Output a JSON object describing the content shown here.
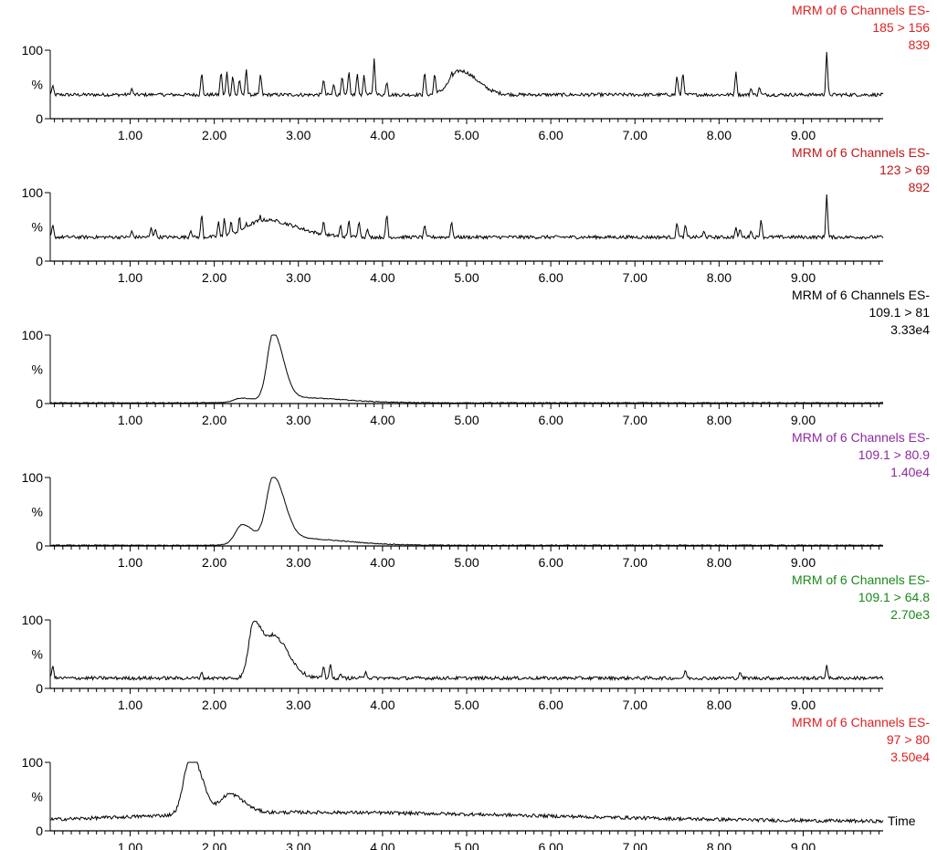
{
  "x_axis_title": "Time",
  "chart_data": [
    {
      "type": "line",
      "header": [
        "MRM of 6 Channels ES-",
        "185 > 156",
        "839"
      ],
      "header_color": "#e02020",
      "xlim": [
        0.05,
        9.95
      ],
      "ylim": [
        0,
        100
      ],
      "y_ticks": [
        "0",
        "%",
        "100"
      ],
      "x_ticks": [
        "1.00",
        "2.00",
        "3.00",
        "4.00",
        "5.00",
        "6.00",
        "7.00",
        "8.00",
        "9.00"
      ],
      "baseline": 35,
      "peaks": [
        [
          0.08,
          50
        ],
        [
          1.02,
          45
        ],
        [
          1.3,
          35
        ],
        [
          1.85,
          70
        ],
        [
          2.08,
          72
        ],
        [
          2.15,
          70
        ],
        [
          2.22,
          65
        ],
        [
          2.3,
          60
        ],
        [
          2.38,
          75
        ],
        [
          2.55,
          68
        ],
        [
          3.3,
          60
        ],
        [
          3.42,
          52
        ],
        [
          3.52,
          65
        ],
        [
          3.6,
          72
        ],
        [
          3.7,
          68
        ],
        [
          3.78,
          65
        ],
        [
          3.9,
          88
        ],
        [
          4.05,
          55
        ],
        [
          4.5,
          72
        ],
        [
          4.62,
          70
        ],
        [
          4.82,
          75
        ],
        [
          4.95,
          72
        ],
        [
          5.02,
          60
        ],
        [
          7.5,
          65
        ],
        [
          7.57,
          70
        ],
        [
          8.2,
          70
        ],
        [
          8.38,
          45
        ],
        [
          8.48,
          47
        ],
        [
          9.28,
          100
        ]
      ],
      "humps": [
        [
          4.92,
          0.12,
          35
        ]
      ]
    },
    {
      "type": "line",
      "header": [
        "MRM of 6 Channels ES-",
        "123 > 69",
        "892"
      ],
      "header_color": "#c01818",
      "xlim": [
        0.05,
        9.95
      ],
      "ylim": [
        0,
        100
      ],
      "y_ticks": [
        "0",
        "%",
        "100"
      ],
      "x_ticks": [
        "1.00",
        "2.00",
        "3.00",
        "4.00",
        "5.00",
        "6.00",
        "7.00",
        "8.00",
        "9.00"
      ],
      "baseline": 35,
      "peaks": [
        [
          0.08,
          55
        ],
        [
          1.02,
          45
        ],
        [
          1.25,
          50
        ],
        [
          1.3,
          48
        ],
        [
          1.72,
          45
        ],
        [
          1.85,
          72
        ],
        [
          2.05,
          60
        ],
        [
          2.12,
          65
        ],
        [
          2.2,
          62
        ],
        [
          2.3,
          70
        ],
        [
          2.38,
          58
        ],
        [
          2.55,
          72
        ],
        [
          2.7,
          60
        ],
        [
          3.0,
          45
        ],
        [
          3.3,
          62
        ],
        [
          3.5,
          55
        ],
        [
          3.6,
          62
        ],
        [
          3.72,
          60
        ],
        [
          3.82,
          48
        ],
        [
          4.05,
          72
        ],
        [
          4.5,
          55
        ],
        [
          4.82,
          60
        ],
        [
          7.5,
          58
        ],
        [
          7.6,
          55
        ],
        [
          7.82,
          45
        ],
        [
          8.2,
          50
        ],
        [
          8.25,
          48
        ],
        [
          8.38,
          45
        ],
        [
          8.5,
          62
        ],
        [
          9.28,
          100
        ]
      ],
      "humps": [
        [
          2.6,
          0.22,
          25
        ]
      ]
    },
    {
      "type": "line",
      "header": [
        "MRM of 6 Channels ES-",
        "109.1 > 81",
        "3.33e4"
      ],
      "header_color": "#000000",
      "xlim": [
        0.05,
        9.95
      ],
      "ylim": [
        0,
        100
      ],
      "y_ticks": [
        "0",
        "%",
        "100"
      ],
      "x_ticks": [
        "1.00",
        "2.00",
        "3.00",
        "4.00",
        "5.00",
        "6.00",
        "7.00",
        "8.00",
        "9.00"
      ],
      "baseline": 1,
      "peaks": [],
      "humps": [
        [
          2.7,
          0.07,
          95
        ],
        [
          2.9,
          0.35,
          8
        ],
        [
          2.3,
          0.07,
          5
        ]
      ]
    },
    {
      "type": "line",
      "header": [
        "MRM of 6 Channels ES-",
        "109.1 > 80.9",
        "1.40e4"
      ],
      "header_color": "#8e2aa0",
      "xlim": [
        0.05,
        9.95
      ],
      "ylim": [
        0,
        100
      ],
      "y_ticks": [
        "0",
        "%",
        "100"
      ],
      "x_ticks": [
        "1.00",
        "2.00",
        "3.00",
        "4.00",
        "5.00",
        "6.00",
        "7.00",
        "8.00",
        "9.00"
      ],
      "baseline": 1,
      "peaks": [],
      "humps": [
        [
          2.7,
          0.08,
          92
        ],
        [
          2.33,
          0.08,
          28
        ],
        [
          2.95,
          0.35,
          10
        ]
      ]
    },
    {
      "type": "line",
      "header": [
        "MRM of 6 Channels ES-",
        "109.1 > 64.8",
        "2.70e3"
      ],
      "header_color": "#1a8a1a",
      "xlim": [
        0.05,
        9.95
      ],
      "ylim": [
        0,
        100
      ],
      "y_ticks": [
        "0",
        "%",
        "100"
      ],
      "x_ticks": [
        "1.00",
        "2.00",
        "3.00",
        "4.00",
        "5.00",
        "6.00",
        "7.00",
        "8.00",
        "9.00"
      ],
      "baseline": 15,
      "peaks": [
        [
          0.08,
          35
        ],
        [
          1.85,
          25
        ],
        [
          3.3,
          35
        ],
        [
          3.38,
          38
        ],
        [
          3.5,
          22
        ],
        [
          3.8,
          25
        ],
        [
          7.6,
          28
        ],
        [
          8.25,
          25
        ],
        [
          9.28,
          35
        ]
      ],
      "humps": [
        [
          2.47,
          0.06,
          82
        ],
        [
          2.72,
          0.1,
          58
        ]
      ]
    },
    {
      "type": "line",
      "header": [
        "MRM of 6 Channels ES-",
        "97 > 80",
        "3.50e4"
      ],
      "header_color": "#e02020",
      "xlim": [
        0.05,
        9.95
      ],
      "ylim": [
        0,
        100
      ],
      "y_ticks": [
        "0",
        "%",
        "100"
      ],
      "x_ticks": [
        "1.00",
        "2.00",
        "3.00",
        "4.00",
        "5.00",
        "6.00",
        "7.00",
        "8.00",
        "9.00"
      ],
      "baseline": 13,
      "peaks": [],
      "humps": [
        [
          1.72,
          0.08,
          87
        ],
        [
          2.18,
          0.1,
          28
        ],
        [
          3.0,
          1.8,
          14
        ]
      ]
    }
  ]
}
